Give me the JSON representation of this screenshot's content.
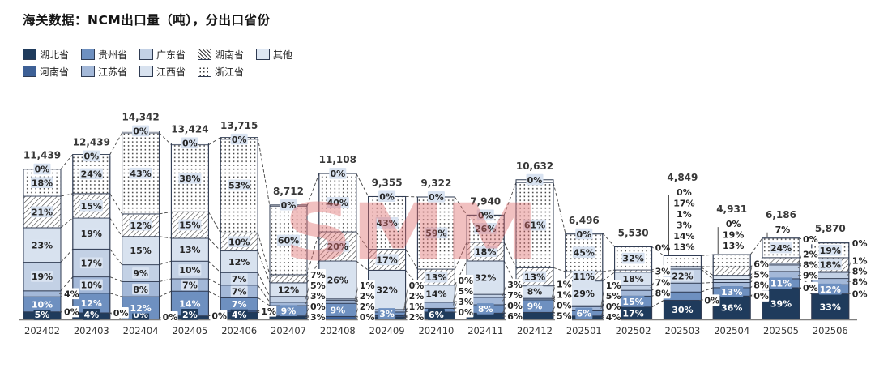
{
  "title": "海关数据：NCM出口量（吨），分出口省份",
  "watermark": "SMM",
  "chart_data": {
    "type": "bar",
    "subtype": "stacked-percent-with-proportional-heights",
    "title": "海关数据：NCM出口量（吨），分出口省份",
    "xlabel": "",
    "ylabel": "",
    "grid": false,
    "legend_position": "top-left, two rows",
    "categories": [
      "202402",
      "202403",
      "202404",
      "202405",
      "202406",
      "202407",
      "202408",
      "202409",
      "202410",
      "202411",
      "202412",
      "202501",
      "202502",
      "202503",
      "202504",
      "202505",
      "202506"
    ],
    "totals_tons": [
      11439,
      12439,
      14342,
      13424,
      13715,
      8712,
      11108,
      9355,
      9322,
      7940,
      10632,
      6496,
      5530,
      4849,
      4931,
      6186,
      5870
    ],
    "series": [
      {
        "name": "湖北省",
        "color": "#1F3B5C",
        "pattern": "solid",
        "text": "white",
        "values_pct": [
          5,
          4,
          0,
          2,
          4,
          3,
          0,
          2,
          6,
          6,
          5,
          4,
          17,
          30,
          36,
          39,
          33
        ]
      },
      {
        "name": "河南省",
        "color": "#3D6096",
        "pattern": "solid",
        "text": "white",
        "values_pct": [
          0,
          0,
          0,
          0,
          1,
          0,
          2,
          1,
          0,
          0,
          0,
          0,
          0,
          0,
          0,
          0,
          0
        ]
      },
      {
        "name": "贵州省",
        "color": "#6E90C0",
        "pattern": "solid",
        "text": "white",
        "values_pct": [
          10,
          12,
          12,
          14,
          7,
          9,
          9,
          3,
          3,
          8,
          9,
          6,
          15,
          13,
          13,
          11,
          12
        ]
      },
      {
        "name": "江苏省",
        "color": "#A3B8D8",
        "pattern": "solid",
        "text": "dark",
        "values_pct": [
          4,
          10,
          8,
          7,
          7,
          3,
          2,
          2,
          5,
          7,
          1,
          5,
          8,
          14,
          8,
          9,
          8
        ]
      },
      {
        "name": "广东省",
        "color": "#C3D1E5",
        "pattern": "solid",
        "text": "dark",
        "values_pct": [
          19,
          17,
          9,
          10,
          7,
          5,
          1,
          0,
          0,
          3,
          1,
          1,
          7,
          22,
          5,
          8,
          8
        ]
      },
      {
        "name": "江西省",
        "color": "#D8E2EF",
        "pattern": "solid",
        "text": "dark",
        "values_pct": [
          23,
          19,
          15,
          13,
          12,
          12,
          26,
          32,
          14,
          32,
          8,
          29,
          18,
          3,
          6,
          2,
          1
        ]
      },
      {
        "name": "湖南省",
        "color": "#ffffff",
        "pattern": "hatch",
        "text": "dark",
        "values_pct": [
          21,
          15,
          12,
          15,
          10,
          7,
          20,
          17,
          13,
          18,
          13,
          11,
          3,
          1,
          13,
          7,
          18
        ]
      },
      {
        "name": "浙江省",
        "color": "#ffffff",
        "pattern": "dots",
        "text": "dark",
        "values_pct": [
          18,
          24,
          43,
          38,
          53,
          60,
          40,
          43,
          59,
          26,
          61,
          45,
          32,
          17,
          19,
          24,
          19
        ]
      },
      {
        "name": "其他",
        "color": "#DEE7F3",
        "pattern": "solid",
        "text": "dark",
        "values_pct": [
          0,
          0,
          0,
          0,
          0,
          0,
          0,
          0,
          0,
          0,
          0,
          0,
          0,
          0,
          0,
          0,
          0
        ]
      }
    ],
    "label_placements": [
      [
        "in",
        "out",
        "in",
        "out",
        "in",
        "in",
        "in",
        "in",
        "top"
      ],
      [
        "in",
        "out",
        "in",
        "in",
        "in",
        "in",
        "in",
        "in",
        "top"
      ],
      [
        "in",
        "out",
        "in",
        "in",
        "in",
        "in",
        "in",
        "in",
        "top"
      ],
      [
        "in",
        "out",
        "in",
        "in",
        "in",
        "in",
        "in",
        "in",
        "top"
      ],
      [
        "in",
        "out",
        "in",
        "in",
        "in",
        "in",
        "in",
        "in",
        "top"
      ],
      [
        "out",
        "out",
        "in",
        "out",
        "out",
        "in",
        "out",
        "in",
        "top"
      ],
      [
        "out",
        "out",
        "in",
        "out",
        "out",
        "in",
        "in",
        "in",
        "top"
      ],
      [
        "out",
        "out",
        "in",
        "out",
        "out",
        "in",
        "in",
        "in",
        "top"
      ],
      [
        "in",
        "out",
        "out",
        "out",
        "out",
        "in",
        "in",
        "in",
        "top"
      ],
      [
        "out",
        "out",
        "in",
        "out",
        "out",
        "in",
        "in",
        "in",
        "top"
      ],
      [
        "out",
        "out",
        "in",
        "out",
        "out",
        "in",
        "in",
        "in",
        "top"
      ],
      [
        "out",
        "out",
        "in",
        "out",
        "out",
        "in",
        "in",
        "in",
        "top"
      ],
      [
        "in",
        "none",
        "in",
        "out",
        "out",
        "in",
        "out",
        "in",
        "outtop"
      ],
      [
        "in",
        "out",
        "above",
        "above",
        "in",
        "above",
        "above",
        "above",
        "above"
      ],
      [
        "in",
        "out",
        "in",
        "out",
        "out",
        "out",
        "above",
        "above",
        "above"
      ],
      [
        "in",
        "out",
        "in",
        "out",
        "out",
        "out",
        "above",
        "in",
        "outtop"
      ],
      [
        "in",
        "out",
        "in",
        "out",
        "out",
        "out",
        "in",
        "in",
        "outtop"
      ]
    ],
    "legend_rows_series_idx": [
      [
        0,
        2,
        4,
        6,
        8
      ],
      [
        1,
        3,
        5,
        7
      ]
    ],
    "connector_lines": "dashed series lines join every segment boundary of adjacent bars",
    "colors": {
      "segment_border": "#2F3B52",
      "label_box_light": "#D9E3F1",
      "label_text_dark": "#262626",
      "connector": "#404040",
      "axis_line": "#7f7f7f",
      "watermark_pink": "#E06A6A"
    }
  }
}
